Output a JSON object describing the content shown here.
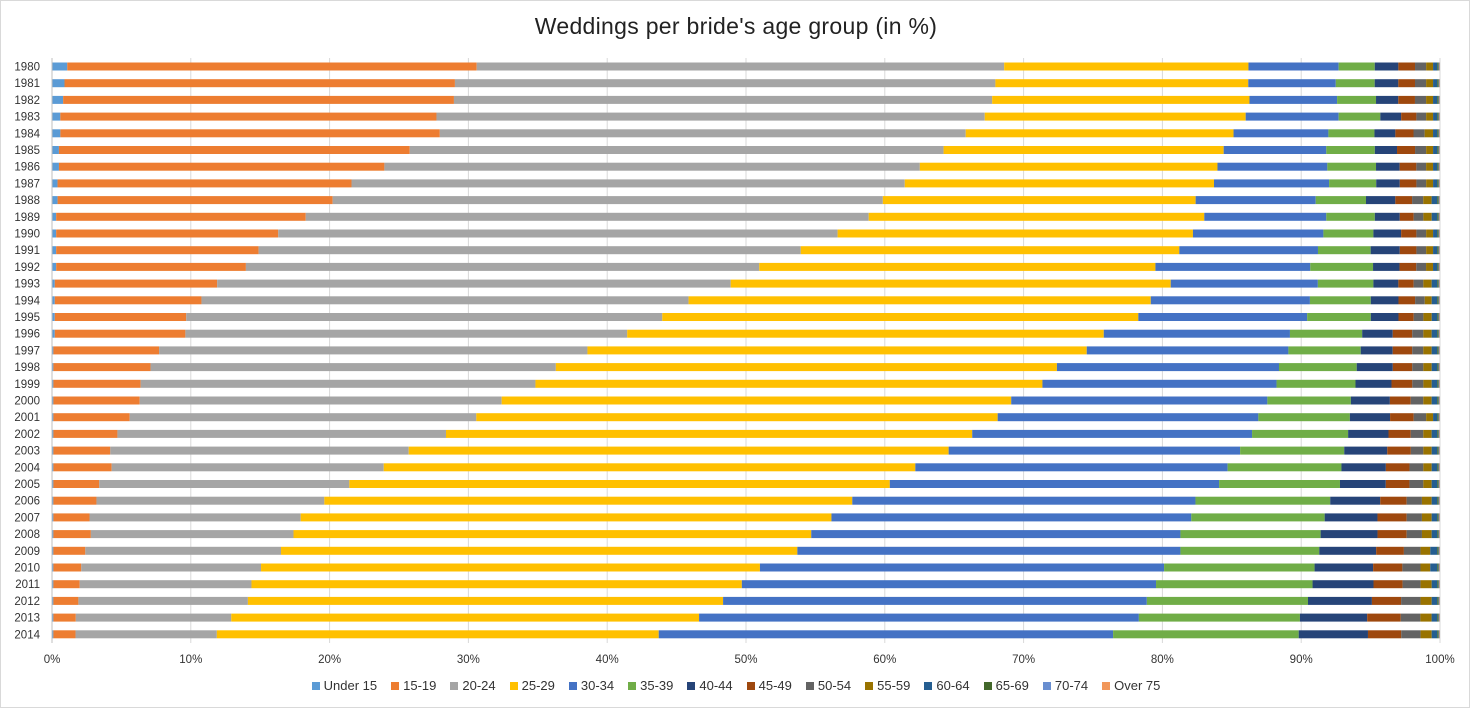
{
  "chart_data": {
    "type": "bar",
    "orientation": "horizontal",
    "stacked": true,
    "title": "Weddings per bride's age group (in %)",
    "xlabel": "",
    "ylabel": "",
    "xlim": [
      0,
      100
    ],
    "x_ticks": [
      "0%",
      "10%",
      "20%",
      "30%",
      "40%",
      "50%",
      "60%",
      "70%",
      "80%",
      "90%",
      "100%"
    ],
    "grid": "vertical",
    "legend_position": "bottom",
    "categories": [
      "1980",
      "1981",
      "1982",
      "1983",
      "1984",
      "1985",
      "1986",
      "1987",
      "1988",
      "1989",
      "1990",
      "1991",
      "1992",
      "1993",
      "1994",
      "1995",
      "1996",
      "1997",
      "1998",
      "1999",
      "2000",
      "2001",
      "2002",
      "2003",
      "2004",
      "2005",
      "2006",
      "2007",
      "2008",
      "2009",
      "2010",
      "2011",
      "2012",
      "2013",
      "2014"
    ],
    "series": [
      {
        "name": "Under 15",
        "color": "#5b9bd5",
        "values": [
          1.1,
          0.9,
          0.8,
          0.6,
          0.6,
          0.5,
          0.5,
          0.4,
          0.4,
          0.3,
          0.3,
          0.3,
          0.3,
          0.2,
          0.2,
          0.2,
          0.2,
          0.1,
          0.1,
          0.1,
          0.1,
          0.1,
          0.1,
          0.1,
          0.1,
          0.1,
          0.1,
          0.1,
          0.1,
          0.1,
          0.1,
          0.1,
          0.1,
          0.1,
          0.1
        ]
      },
      {
        "name": "15-19",
        "color": "#ed7d31",
        "values": [
          29.5,
          28.1,
          28.1,
          27.1,
          27.2,
          25.3,
          23.4,
          21.2,
          19.7,
          18.0,
          16.0,
          14.6,
          13.6,
          11.7,
          10.6,
          9.5,
          9.4,
          7.6,
          7.0,
          6.3,
          6.2,
          5.5,
          4.6,
          4.1,
          4.2,
          3.3,
          3.1,
          2.6,
          2.7,
          2.3,
          2.0,
          1.9,
          1.8,
          1.6,
          1.6
        ]
      },
      {
        "name": "20-24",
        "color": "#a5a5a5",
        "values": [
          38.0,
          38.9,
          38.7,
          39.5,
          37.7,
          38.5,
          38.5,
          39.9,
          39.4,
          40.6,
          40.3,
          39.1,
          36.8,
          37.0,
          35.2,
          34.4,
          31.8,
          30.8,
          29.2,
          28.5,
          26.0,
          25.0,
          23.6,
          21.5,
          19.6,
          18.0,
          16.4,
          15.2,
          14.6,
          14.1,
          12.9,
          12.4,
          12.2,
          11.1,
          10.2
        ]
      },
      {
        "name": "25-29",
        "color": "#ffc000",
        "values": [
          17.6,
          18.2,
          18.5,
          18.8,
          19.2,
          20.2,
          21.4,
          22.3,
          22.4,
          24.2,
          25.6,
          27.3,
          28.4,
          31.7,
          33.4,
          34.4,
          34.3,
          35.9,
          36.1,
          36.6,
          36.6,
          37.6,
          37.8,
          38.9,
          38.3,
          38.9,
          38.0,
          38.2,
          37.3,
          37.2,
          35.8,
          35.4,
          34.2,
          33.4,
          31.9
        ]
      },
      {
        "name": "30-34",
        "color": "#4472c4",
        "values": [
          6.5,
          6.3,
          6.3,
          6.7,
          6.8,
          7.4,
          7.9,
          8.3,
          8.6,
          8.8,
          9.4,
          10.0,
          11.1,
          10.6,
          11.5,
          12.2,
          13.4,
          14.5,
          16.0,
          16.9,
          18.4,
          18.8,
          20.1,
          21.0,
          22.5,
          23.7,
          24.7,
          25.9,
          26.6,
          27.6,
          29.0,
          29.9,
          30.5,
          31.4,
          32.8
        ]
      },
      {
        "name": "35-39",
        "color": "#70ad47",
        "values": [
          2.6,
          2.8,
          2.8,
          3.0,
          3.3,
          3.5,
          3.5,
          3.4,
          3.6,
          3.5,
          3.6,
          3.8,
          4.5,
          4.0,
          4.4,
          4.6,
          5.2,
          5.2,
          5.6,
          5.7,
          6.0,
          6.6,
          6.9,
          7.5,
          8.2,
          8.7,
          9.7,
          9.6,
          10.1,
          10.0,
          10.8,
          11.3,
          11.6,
          11.5,
          13.4
        ]
      },
      {
        "name": "40-44",
        "color": "#264478",
        "values": [
          1.7,
          1.7,
          1.6,
          1.5,
          1.5,
          1.6,
          1.7,
          1.7,
          2.1,
          1.8,
          2.0,
          2.1,
          1.9,
          1.8,
          2.0,
          2.0,
          2.2,
          2.3,
          2.6,
          2.6,
          2.8,
          2.9,
          2.9,
          3.1,
          3.2,
          3.3,
          3.6,
          3.8,
          4.1,
          4.1,
          4.2,
          4.4,
          4.6,
          4.8,
          5.0
        ]
      },
      {
        "name": "45-49",
        "color": "#9e480e",
        "values": [
          1.2,
          1.2,
          1.2,
          1.1,
          1.3,
          1.3,
          1.2,
          1.2,
          1.2,
          1.0,
          1.1,
          1.2,
          1.2,
          1.1,
          1.2,
          1.1,
          1.4,
          1.4,
          1.4,
          1.5,
          1.5,
          1.7,
          1.6,
          1.7,
          1.7,
          1.7,
          1.9,
          2.1,
          2.1,
          2.0,
          2.1,
          2.1,
          2.1,
          2.4,
          2.4
        ]
      },
      {
        "name": "50-54",
        "color": "#636363",
        "values": [
          0.8,
          0.8,
          0.8,
          0.7,
          0.8,
          0.8,
          0.7,
          0.7,
          0.8,
          0.7,
          0.7,
          0.7,
          0.7,
          0.7,
          0.7,
          0.7,
          0.8,
          0.8,
          0.8,
          0.8,
          0.9,
          0.9,
          0.9,
          0.9,
          1.0,
          1.0,
          1.1,
          1.1,
          1.1,
          1.2,
          1.3,
          1.3,
          1.4,
          1.4,
          1.4
        ]
      },
      {
        "name": "55-59",
        "color": "#997300",
        "values": [
          0.5,
          0.5,
          0.5,
          0.5,
          0.6,
          0.5,
          0.5,
          0.5,
          0.6,
          0.6,
          0.5,
          0.5,
          0.5,
          0.6,
          0.5,
          0.6,
          0.6,
          0.6,
          0.6,
          0.6,
          0.6,
          0.5,
          0.6,
          0.6,
          0.6,
          0.6,
          0.7,
          0.7,
          0.7,
          0.7,
          0.7,
          0.8,
          0.8,
          0.8,
          0.8
        ]
      },
      {
        "name": "60-64",
        "color": "#255e91",
        "values": [
          0.3,
          0.3,
          0.3,
          0.3,
          0.3,
          0.3,
          0.3,
          0.3,
          0.4,
          0.4,
          0.3,
          0.3,
          0.3,
          0.4,
          0.4,
          0.4,
          0.4,
          0.4,
          0.4,
          0.4,
          0.4,
          0.3,
          0.4,
          0.4,
          0.4,
          0.4,
          0.4,
          0.4,
          0.4,
          0.5,
          0.5,
          0.4,
          0.4,
          0.4,
          0.4
        ]
      },
      {
        "name": "65-69",
        "color": "#43682b",
        "values": [
          0.1,
          0.1,
          0.1,
          0.1,
          0.1,
          0.1,
          0.1,
          0.1,
          0.1,
          0.1,
          0.1,
          0.1,
          0.1,
          0.1,
          0.1,
          0.1,
          0.1,
          0.1,
          0.1,
          0.1,
          0.1,
          0.1,
          0.1,
          0.1,
          0.1,
          0.1,
          0.1,
          0.1,
          0.1,
          0.1,
          0.1,
          0.1,
          0.1,
          0.1,
          0.1
        ]
      },
      {
        "name": "70-74",
        "color": "#698ed0",
        "values": [
          0.06,
          0.06,
          0.06,
          0.06,
          0.06,
          0.06,
          0.06,
          0.06,
          0.06,
          0.06,
          0.06,
          0.06,
          0.06,
          0.06,
          0.06,
          0.06,
          0.06,
          0.06,
          0.06,
          0.06,
          0.06,
          0.06,
          0.06,
          0.06,
          0.06,
          0.06,
          0.06,
          0.06,
          0.06,
          0.06,
          0.06,
          0.06,
          0.06,
          0.06,
          0.06
        ]
      },
      {
        "name": "Over 75",
        "color": "#f1975a",
        "values": [
          0.04,
          0.04,
          0.04,
          0.04,
          0.04,
          0.04,
          0.04,
          0.04,
          0.04,
          0.04,
          0.04,
          0.04,
          0.04,
          0.04,
          0.04,
          0.04,
          0.04,
          0.04,
          0.04,
          0.04,
          0.04,
          0.04,
          0.04,
          0.04,
          0.04,
          0.04,
          0.04,
          0.04,
          0.04,
          0.04,
          0.04,
          0.04,
          0.04,
          0.04,
          0.04
        ]
      }
    ]
  }
}
